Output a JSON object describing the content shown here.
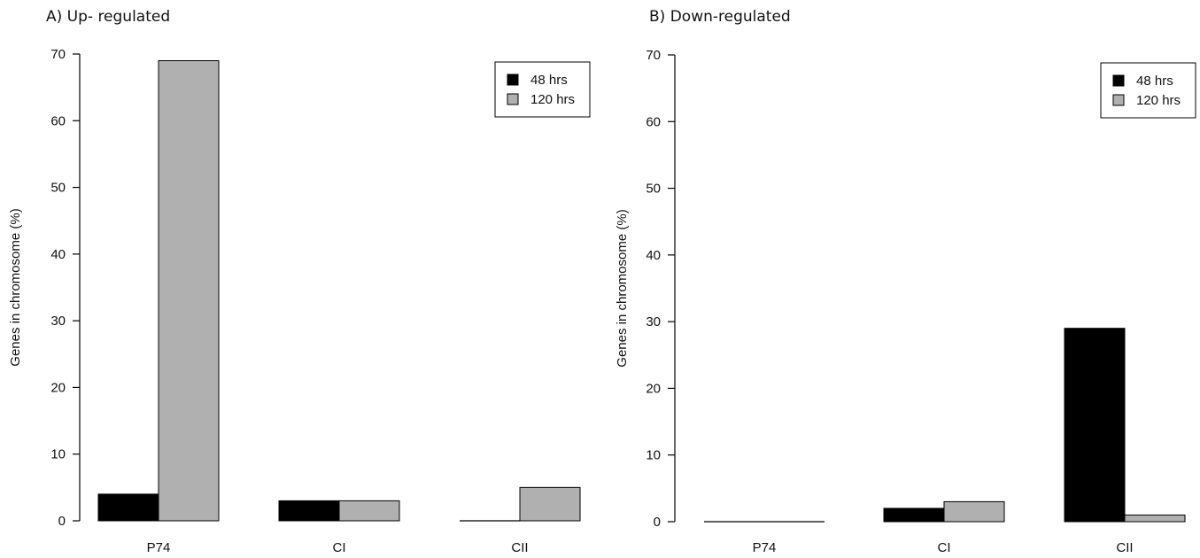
{
  "chart_data": [
    {
      "type": "bar",
      "title": "A) Up- regulated",
      "ylabel": "Genes in chromosome (%)",
      "xlabel": "",
      "categories": [
        "P74",
        "CI",
        "CII"
      ],
      "series": [
        {
          "name": "48 hrs",
          "values": [
            4,
            3,
            0
          ],
          "color": "#000000"
        },
        {
          "name": "120 hrs",
          "values": [
            69,
            3,
            5
          ],
          "color": "#b0b0b0"
        }
      ],
      "ylim": [
        0,
        70
      ],
      "yticks": [
        "0",
        "10",
        "20",
        "30",
        "40",
        "50",
        "60",
        "70"
      ],
      "grid": false,
      "legend_position": "top-right"
    },
    {
      "type": "bar",
      "title": "B) Down-regulated",
      "ylabel": "Genes in chromosome (%)",
      "xlabel": "",
      "categories": [
        "P74",
        "CI",
        "CII"
      ],
      "series": [
        {
          "name": "48 hrs",
          "values": [
            0,
            2,
            29
          ],
          "color": "#000000"
        },
        {
          "name": "120 hrs",
          "values": [
            0,
            3,
            1
          ],
          "color": "#b0b0b0"
        }
      ],
      "ylim": [
        0,
        70
      ],
      "yticks": [
        "0",
        "10",
        "20",
        "30",
        "40",
        "50",
        "60",
        "70"
      ],
      "grid": false,
      "legend_position": "top-right"
    }
  ]
}
